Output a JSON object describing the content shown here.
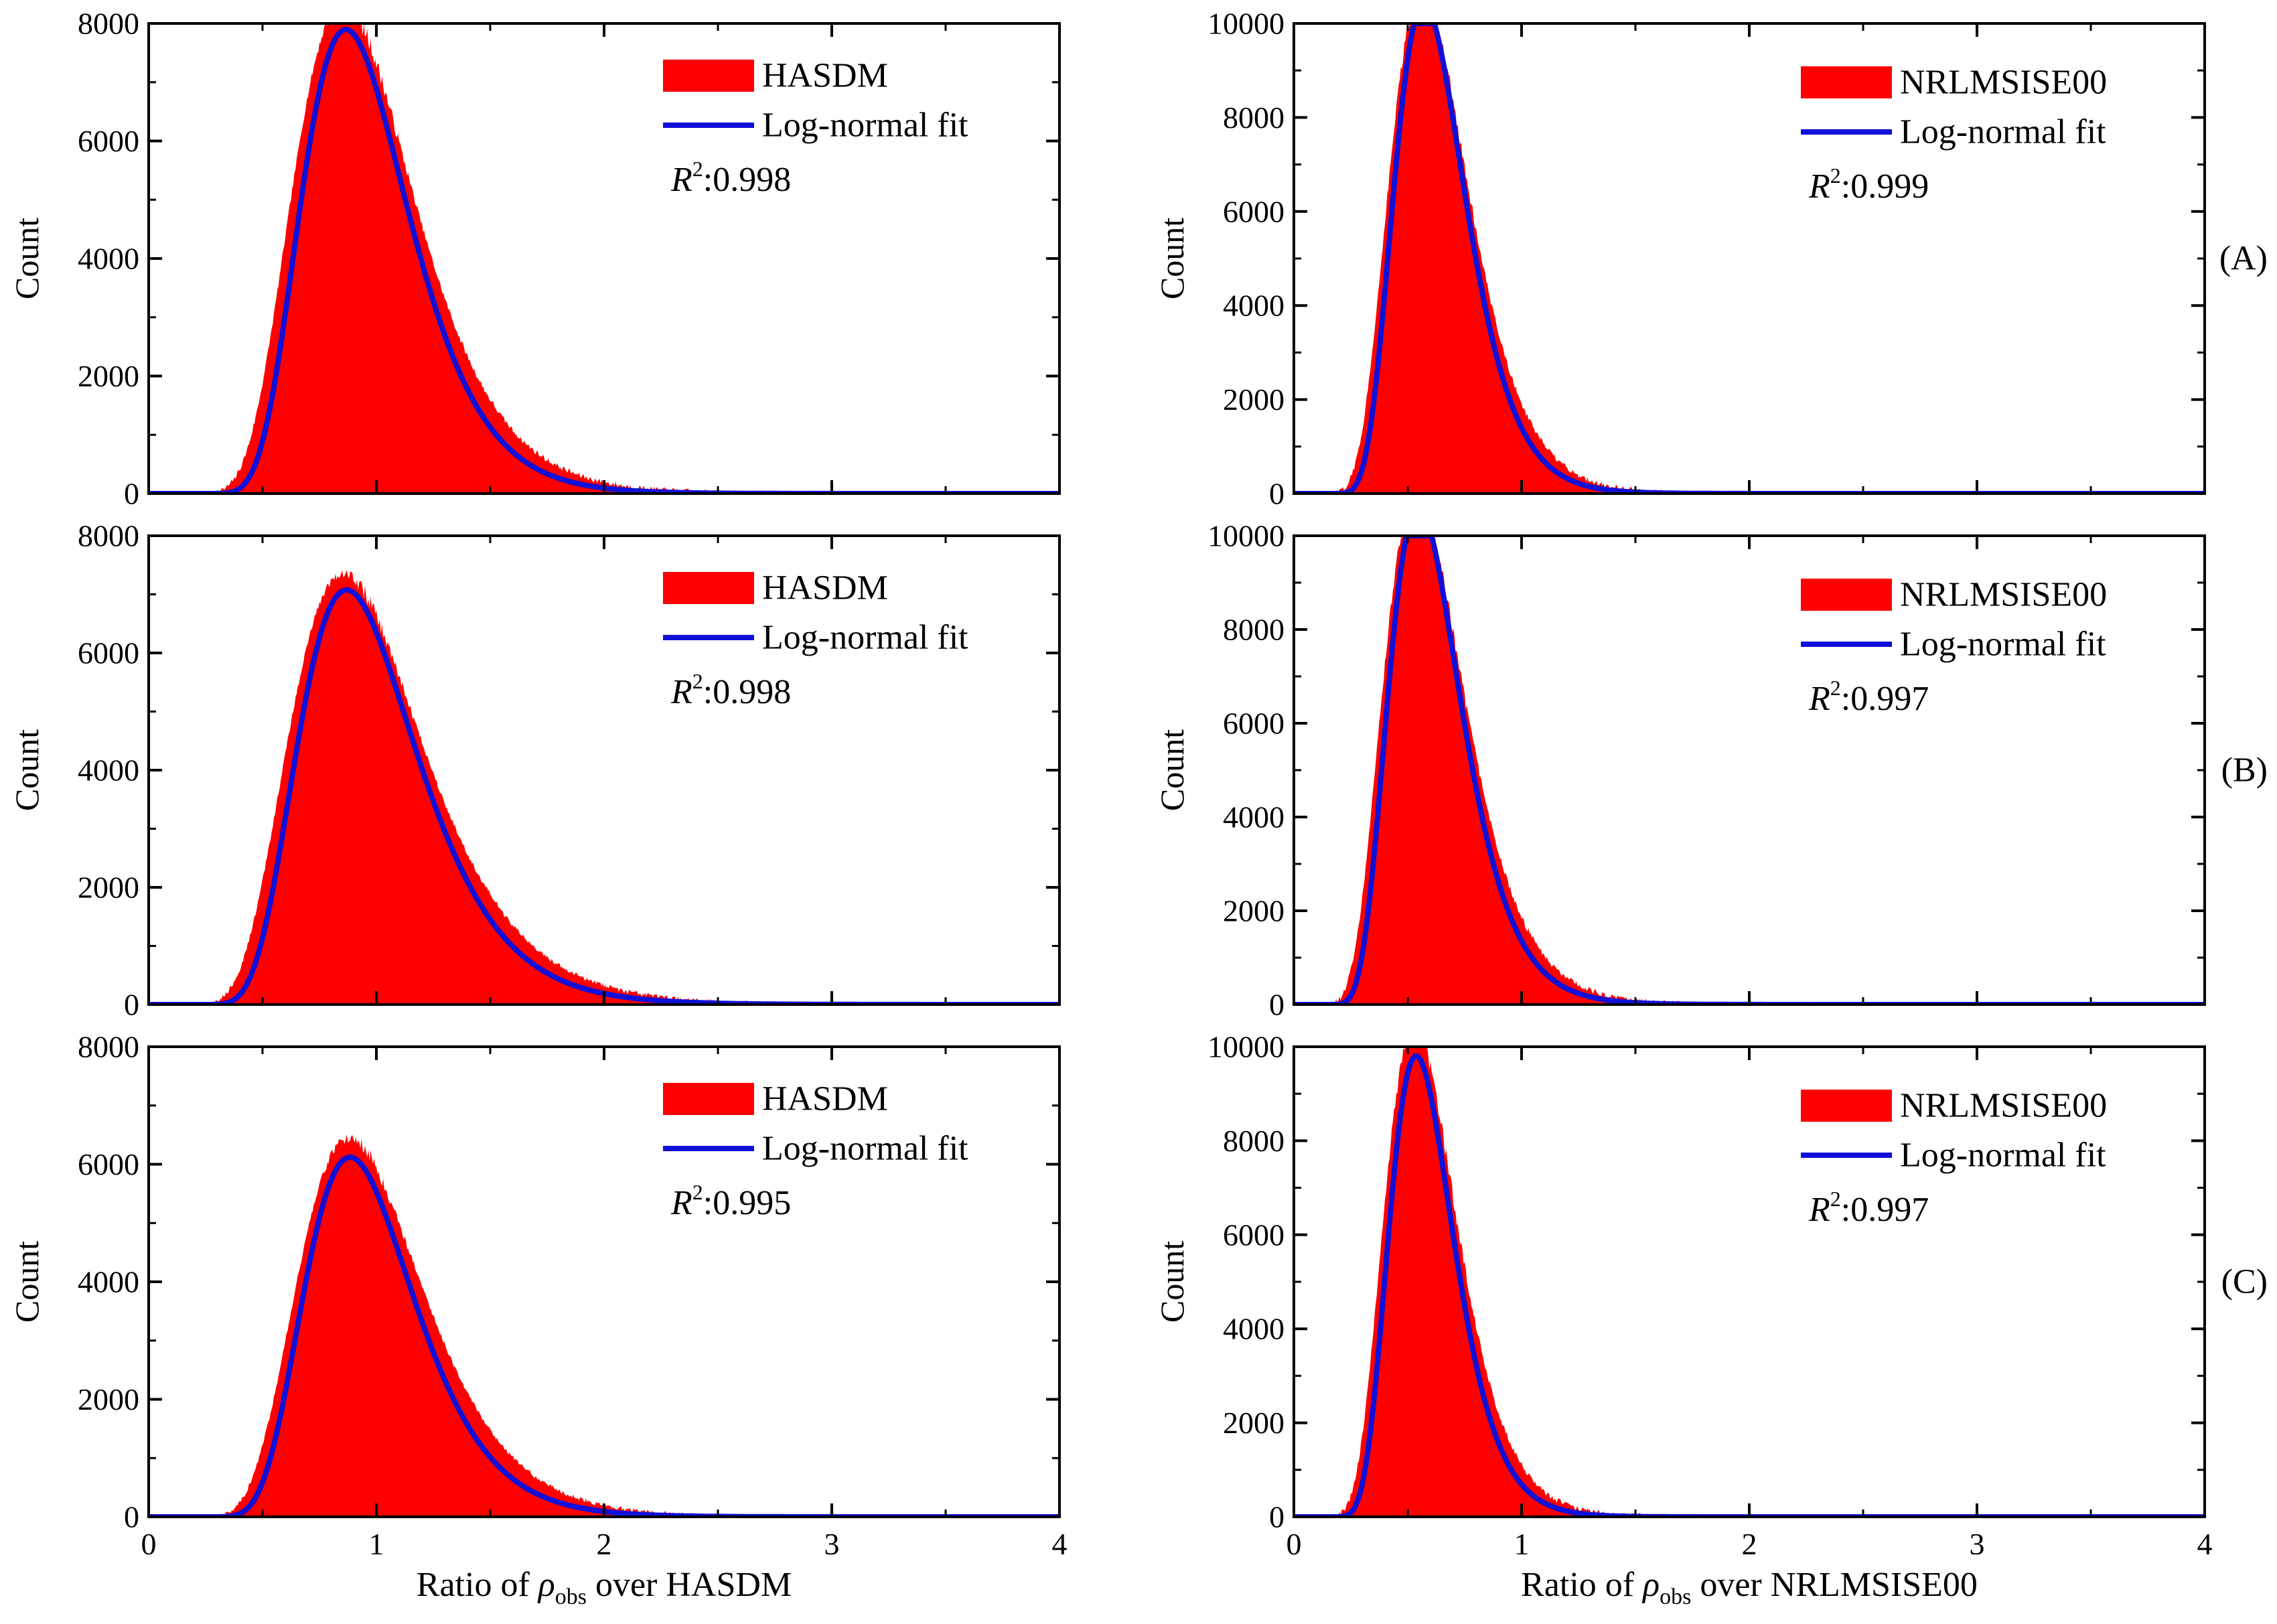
{
  "chart_data": [
    {
      "type": "area",
      "panel": "A",
      "model": "HASDM",
      "legend": [
        "HASDM",
        "Log-normal fit"
      ],
      "r2_label": "R",
      "r2_value": ":0.998",
      "ylim": [
        0,
        8000
      ],
      "yticks": [
        "0",
        "2000",
        "4000",
        "6000",
        "8000"
      ],
      "xlim": [
        0,
        4
      ],
      "xticks": [
        "0",
        "1",
        "2",
        "3",
        "4"
      ],
      "ylabel": "Count",
      "xlabel": "",
      "fit": {
        "mode": 0.94,
        "sigma": 0.3,
        "peak": 7550,
        "shift": 0.08
      },
      "hist": {
        "mode": 0.94,
        "sigma": 0.31,
        "peak": 7950
      }
    },
    {
      "type": "area",
      "panel": "A",
      "model": "NRLMSISE00",
      "legend": [
        "NRLMSISE00",
        "Log-normal fit"
      ],
      "r2_label": "R",
      "r2_value": ":0.999",
      "ylim": [
        0,
        10000
      ],
      "yticks": [
        "0",
        "2000",
        "4000",
        "6000",
        "8000",
        "10000"
      ],
      "xlim": [
        0,
        4
      ],
      "xticks": [
        "0",
        "1",
        "2",
        "3",
        "4"
      ],
      "ylabel": "Count",
      "xlabel": "",
      "fit": {
        "mode": 0.62,
        "sigma": 0.3,
        "peak": 9950,
        "shift": 0.05
      },
      "hist": {
        "mode": 0.62,
        "sigma": 0.31,
        "peak": 10150
      }
    },
    {
      "type": "area",
      "panel": "B",
      "model": "HASDM",
      "legend": [
        "HASDM",
        "Log-normal fit"
      ],
      "r2_label": "R",
      "r2_value": ":0.998",
      "ylim": [
        0,
        8000
      ],
      "yticks": [
        "0",
        "2000",
        "4000",
        "6000",
        "8000"
      ],
      "xlim": [
        0,
        4
      ],
      "xticks": [
        "0",
        "1",
        "2",
        "3",
        "4"
      ],
      "ylabel": "Count",
      "xlabel": "",
      "fit": {
        "mode": 0.96,
        "sigma": 0.33,
        "peak": 6700,
        "shift": 0.08
      },
      "hist": {
        "mode": 0.96,
        "sigma": 0.34,
        "peak": 6950
      }
    },
    {
      "type": "area",
      "panel": "B",
      "model": "NRLMSISE00",
      "legend": [
        "NRLMSISE00",
        "Log-normal fit"
      ],
      "r2_label": "R",
      "r2_value": ":0.997",
      "ylim": [
        0,
        10000
      ],
      "yticks": [
        "0",
        "2000",
        "4000",
        "6000",
        "8000",
        "10000"
      ],
      "xlim": [
        0,
        4
      ],
      "xticks": [
        "0",
        "1",
        "2",
        "3",
        "4"
      ],
      "ylabel": "Count",
      "xlabel": "",
      "fit": {
        "mode": 0.6,
        "sigma": 0.32,
        "peak": 10100,
        "shift": 0.05
      },
      "hist": {
        "mode": 0.6,
        "sigma": 0.33,
        "peak": 10300
      }
    },
    {
      "type": "area",
      "panel": "C",
      "model": "HASDM",
      "legend": [
        "HASDM",
        "Log-normal fit"
      ],
      "r2_label": "R",
      "r2_value": ":0.995",
      "ylim": [
        0,
        8000
      ],
      "yticks": [
        "0",
        "2000",
        "4000",
        "6000",
        "8000"
      ],
      "xlim": [
        0,
        4
      ],
      "xticks": [
        "0",
        "1",
        "2",
        "3",
        "4"
      ],
      "ylabel": "Count",
      "xlabel": "Ratio of ρobs over HASDM",
      "fit": {
        "mode": 0.96,
        "sigma": 0.3,
        "peak": 5850,
        "shift": 0.08
      },
      "hist": {
        "mode": 0.97,
        "sigma": 0.31,
        "peak": 6150
      }
    },
    {
      "type": "area",
      "panel": "C",
      "model": "NRLMSISE00",
      "legend": [
        "NRLMSISE00",
        "Log-normal fit"
      ],
      "r2_label": "R",
      "r2_value": ":0.997",
      "ylim": [
        0,
        10000
      ],
      "yticks": [
        "0",
        "2000",
        "4000",
        "6000",
        "8000",
        "10000"
      ],
      "xlim": [
        0,
        4
      ],
      "xticks": [
        "0",
        "1",
        "2",
        "3",
        "4"
      ],
      "ylabel": "Count",
      "xlabel": "Ratio of ρobs over NRLMSISE00",
      "fit": {
        "mode": 0.58,
        "sigma": 0.29,
        "peak": 9400,
        "shift": 0.05
      },
      "hist": {
        "mode": 0.58,
        "sigma": 0.3,
        "peak": 9950
      }
    }
  ],
  "xlabel_parts": {
    "prefix": "Ratio of ",
    "rho": "ρ",
    "sub": "obs",
    "mid": " over ",
    "left_model": "HASDM",
    "right_model": "NRLMSISE00"
  },
  "r2_sup": "2",
  "panel_labels": [
    "(A)",
    "(B)",
    "(C)"
  ],
  "colors": {
    "hist": "#ff0000",
    "fit": "#1010d8",
    "axis": "#000000"
  }
}
